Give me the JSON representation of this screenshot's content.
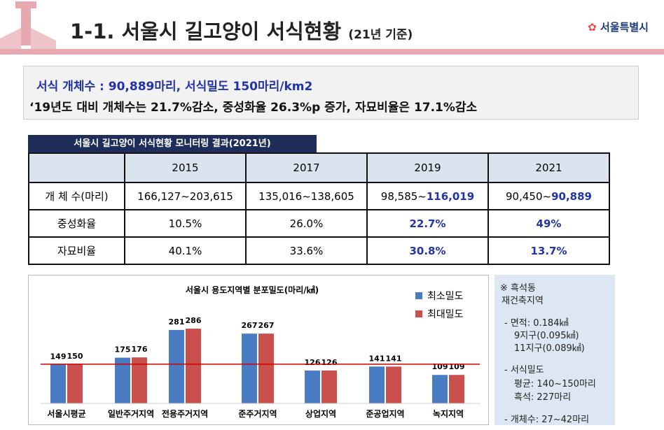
{
  "header": {
    "title": "1-1. 서울시 길고양이 서식현황",
    "subtitle": "(21년 기준)",
    "logo": "서울특별시"
  },
  "summary": {
    "line1": "서식 개체수 : 90,889마리, 서식밀도 150마리/km2",
    "line2": "‘19년도 대비 개체수는 21.7%감소, 중성화율 26.3%p 증가,  자묘비율은 17.1%감소"
  },
  "table": {
    "caption": "서울시 길고양이 서식현황 모니터링 결과(2021년)",
    "columns": [
      "2015",
      "2017",
      "2019",
      "2021"
    ],
    "rows": [
      {
        "label": "개 체 수(마리)",
        "cells": [
          "166,127~203,615",
          "135,016~138,605",
          {
            "text": "98,585~",
            "emphasis": "116,019"
          },
          {
            "text": "90,450~",
            "emphasis": "90,889"
          }
        ]
      },
      {
        "label": "중성화율",
        "cells": [
          "10.5%",
          "26.0%",
          "22.7%",
          "49%"
        ]
      },
      {
        "label": "자묘비율",
        "cells": [
          "40.1%",
          "33.6%",
          "30.8%",
          "13.7%"
        ]
      }
    ]
  },
  "chart_data": {
    "type": "bar",
    "title": "서울시 용도지역별 분포밀도(마리/㎢)",
    "categories": [
      "서울시평균",
      "일반주거지역",
      "전용주거지역",
      "준주거지역",
      "상업지역",
      "준공업지역",
      "녹지지역"
    ],
    "series": [
      {
        "name": "최소밀도",
        "color": "#4a7cc4",
        "values": [
          149,
          175,
          281,
          267,
          126,
          141,
          109
        ]
      },
      {
        "name": "최대밀도",
        "color": "#c9504d",
        "values": [
          150,
          176,
          286,
          267,
          126,
          141,
          109
        ]
      }
    ]
  },
  "note": {
    "title": "※ 흑석동",
    "subtitle": "재건축지역",
    "items": [
      "- 면적: 0.184㎢",
      "9지구(0.095㎢)",
      "11지구(0.089㎢)",
      "- 서식밀도",
      "평균: 140~150마리",
      "흑석: 227마리",
      "- 개체수: 27~42마리"
    ]
  }
}
